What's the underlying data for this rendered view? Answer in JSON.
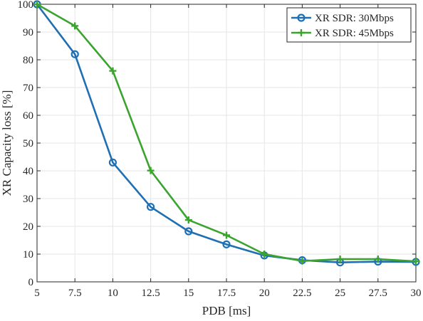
{
  "chart_data": {
    "type": "line",
    "title": "",
    "xlabel": "PDB [ms]",
    "ylabel": "XR Capacity loss [%]",
    "x": [
      5,
      7.5,
      10,
      12.5,
      15,
      17.5,
      20,
      22.5,
      25,
      27.5,
      30
    ],
    "xticks": [
      "5",
      "7.5",
      "10",
      "12.5",
      "15",
      "17.5",
      "20",
      "22.5",
      "25",
      "27.5",
      "30"
    ],
    "yticks": [
      "0",
      "10",
      "20",
      "30",
      "40",
      "50",
      "60",
      "70",
      "80",
      "90",
      "100"
    ],
    "xlim": [
      5,
      30
    ],
    "ylim": [
      0,
      100
    ],
    "grid": true,
    "legend_position": "top-right",
    "series": [
      {
        "name": "XR SDR: 30Mbps",
        "color": "#1f6fb2",
        "marker": "circle",
        "values": [
          100,
          82,
          43,
          27,
          18.2,
          13.5,
          9.5,
          7.8,
          7.0,
          7.3,
          7.2
        ]
      },
      {
        "name": "XR SDR: 45Mbps",
        "color": "#3aa42e",
        "marker": "plus",
        "values": [
          100,
          92.2,
          76,
          40.1,
          22.3,
          16.8,
          10,
          7.5,
          8.2,
          8.2,
          7.4
        ]
      }
    ]
  }
}
